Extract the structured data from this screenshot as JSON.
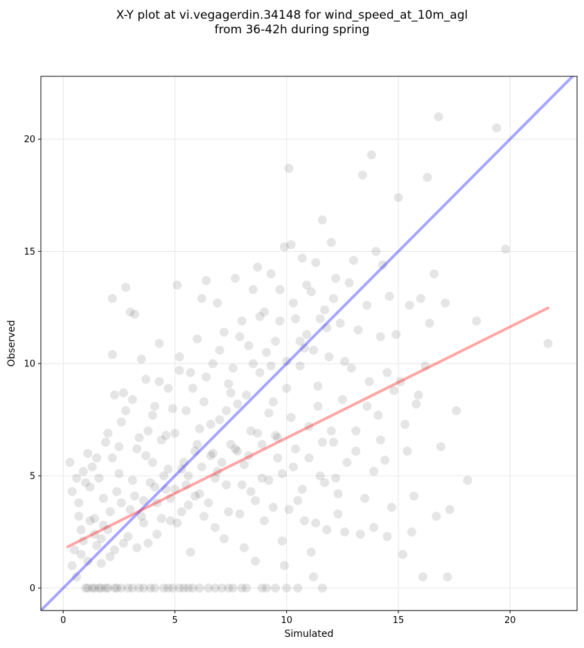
{
  "chart_data": {
    "type": "scatter",
    "title_line1": "X-Y plot at vi.vegagerdin.34148 for wind_speed_at_10m_agl",
    "title_line2": "from 36-42h during spring",
    "xlabel": "Simulated",
    "ylabel": "Observed",
    "xlim": [
      -1,
      23
    ],
    "ylim": [
      -1,
      22.8
    ],
    "xticks": [
      0,
      5,
      10,
      15,
      20
    ],
    "yticks": [
      0,
      5,
      10,
      15,
      20
    ],
    "grid": true,
    "point_color": "#000000",
    "identity_line": {
      "color": "#0000ff",
      "x": [
        -1,
        23
      ],
      "y": [
        -1,
        23
      ]
    },
    "regression_line": {
      "color": "#ff0000",
      "x": [
        0.2,
        21.7
      ],
      "y": [
        1.84,
        12.48
      ]
    },
    "points": [
      [
        0.3,
        5.6
      ],
      [
        0.4,
        4.3
      ],
      [
        0.5,
        1.7
      ],
      [
        0.6,
        4.9
      ],
      [
        0.7,
        3.8
      ],
      [
        0.8,
        2.6
      ],
      [
        0.9,
        5.2
      ],
      [
        1.0,
        0.0
      ],
      [
        1.1,
        6.0
      ],
      [
        1.2,
        4.5
      ],
      [
        1.3,
        0.0
      ],
      [
        1.4,
        3.1
      ],
      [
        1.5,
        5.8
      ],
      [
        1.6,
        0.0
      ],
      [
        1.7,
        2.2
      ],
      [
        1.8,
        4.0
      ],
      [
        1.9,
        0.0
      ],
      [
        2.0,
        6.9
      ],
      [
        2.1,
        3.4
      ],
      [
        2.2,
        12.9
      ],
      [
        2.2,
        10.4
      ],
      [
        2.3,
        8.6
      ],
      [
        2.4,
        0.0
      ],
      [
        2.5,
        5.1
      ],
      [
        2.6,
        7.4
      ],
      [
        2.7,
        8.7
      ],
      [
        2.8,
        13.4
      ],
      [
        2.9,
        0.0
      ],
      [
        3.0,
        12.3
      ],
      [
        3.1,
        4.8
      ],
      [
        3.2,
        12.2
      ],
      [
        3.3,
        6.2
      ],
      [
        3.4,
        0.0
      ],
      [
        3.5,
        10.2
      ],
      [
        3.6,
        3.9
      ],
      [
        3.7,
        9.3
      ],
      [
        3.8,
        7.0
      ],
      [
        3.9,
        0.0
      ],
      [
        4.0,
        5.6
      ],
      [
        4.1,
        8.1
      ],
      [
        4.2,
        2.4
      ],
      [
        4.3,
        10.9
      ],
      [
        4.4,
        6.6
      ],
      [
        4.5,
        0.0
      ],
      [
        4.6,
        4.4
      ],
      [
        4.7,
        8.9
      ],
      [
        4.8,
        3.0
      ],
      [
        4.9,
        0.0
      ],
      [
        5.0,
        6.9
      ],
      [
        5.1,
        13.5
      ],
      [
        5.2,
        10.3
      ],
      [
        5.3,
        5.3
      ],
      [
        5.4,
        0.0
      ],
      [
        5.5,
        7.9
      ],
      [
        5.6,
        3.7
      ],
      [
        5.7,
        9.6
      ],
      [
        5.8,
        0.0
      ],
      [
        5.9,
        6.1
      ],
      [
        6.0,
        11.1
      ],
      [
        6.1,
        4.2
      ],
      [
        6.2,
        12.9
      ],
      [
        6.3,
        8.3
      ],
      [
        6.4,
        13.7
      ],
      [
        6.5,
        0.0
      ],
      [
        6.6,
        5.9
      ],
      [
        6.7,
        10.0
      ],
      [
        6.8,
        2.7
      ],
      [
        6.9,
        12.7
      ],
      [
        7.0,
        7.5
      ],
      [
        7.1,
        0.0
      ],
      [
        7.2,
        11.4
      ],
      [
        7.3,
        4.6
      ],
      [
        7.4,
        9.1
      ],
      [
        7.5,
        6.4
      ],
      [
        7.6,
        0.0
      ],
      [
        7.7,
        13.8
      ],
      [
        7.8,
        8.2
      ],
      [
        7.9,
        3.3
      ],
      [
        8.0,
        11.9
      ],
      [
        8.1,
        5.5
      ],
      [
        8.2,
        0.0
      ],
      [
        8.3,
        10.8
      ],
      [
        8.4,
        7.0
      ],
      [
        8.5,
        13.3
      ],
      [
        8.6,
        1.2
      ],
      [
        8.7,
        14.3
      ],
      [
        8.8,
        9.6
      ],
      [
        8.9,
        4.9
      ],
      [
        9.0,
        12.3
      ],
      [
        9.1,
        0.0
      ],
      [
        9.2,
        7.8
      ],
      [
        9.3,
        14.0
      ],
      [
        9.4,
        3.6
      ],
      [
        9.5,
        11.0
      ],
      [
        9.6,
        6.7
      ],
      [
        9.7,
        13.3
      ],
      [
        9.8,
        2.1
      ],
      [
        9.9,
        15.2
      ],
      [
        10.0,
        8.9
      ],
      [
        10.1,
        18.7
      ],
      [
        10.2,
        15.3
      ],
      [
        10.3,
        5.4
      ],
      [
        10.4,
        12.0
      ],
      [
        10.5,
        0.0
      ],
      [
        10.6,
        9.9
      ],
      [
        10.7,
        14.7
      ],
      [
        10.8,
        3.0
      ],
      [
        10.9,
        11.3
      ],
      [
        11.0,
        7.2
      ],
      [
        11.1,
        13.2
      ],
      [
        11.2,
        0.5
      ],
      [
        11.3,
        14.5
      ],
      [
        11.4,
        9.0
      ],
      [
        11.5,
        5.0
      ],
      [
        11.6,
        16.4
      ],
      [
        11.7,
        12.4
      ],
      [
        11.8,
        2.6
      ],
      [
        11.9,
        10.3
      ],
      [
        12.0,
        15.4
      ],
      [
        12.1,
        6.5
      ],
      [
        12.2,
        13.8
      ],
      [
        12.3,
        4.2
      ],
      [
        12.4,
        11.8
      ],
      [
        12.5,
        8.4
      ],
      [
        12.6,
        2.5
      ],
      [
        12.8,
        13.6
      ],
      [
        12.9,
        9.8
      ],
      [
        13.0,
        14.6
      ],
      [
        13.1,
        6.1
      ],
      [
        13.2,
        11.5
      ],
      [
        13.4,
        18.4
      ],
      [
        13.5,
        4.0
      ],
      [
        13.6,
        12.6
      ],
      [
        13.7,
        9.2
      ],
      [
        13.8,
        19.3
      ],
      [
        13.9,
        2.7
      ],
      [
        14.0,
        15.0
      ],
      [
        14.1,
        7.7
      ],
      [
        14.2,
        11.2
      ],
      [
        14.3,
        14.4
      ],
      [
        14.4,
        5.7
      ],
      [
        14.5,
        9.6
      ],
      [
        14.6,
        13.0
      ],
      [
        14.7,
        3.6
      ],
      [
        14.9,
        11.3
      ],
      [
        15.0,
        17.4
      ],
      [
        15.1,
        9.2
      ],
      [
        15.2,
        1.5
      ],
      [
        15.3,
        7.3
      ],
      [
        15.5,
        12.6
      ],
      [
        15.6,
        2.5
      ],
      [
        15.7,
        4.1
      ],
      [
        15.8,
        8.2
      ],
      [
        16.0,
        12.9
      ],
      [
        16.1,
        0.5
      ],
      [
        16.2,
        9.9
      ],
      [
        16.3,
        18.3
      ],
      [
        16.4,
        11.8
      ],
      [
        16.6,
        14.0
      ],
      [
        16.7,
        3.2
      ],
      [
        16.8,
        21.0
      ],
      [
        16.9,
        6.3
      ],
      [
        17.1,
        12.7
      ],
      [
        17.2,
        0.5
      ],
      [
        17.3,
        3.5
      ],
      [
        17.6,
        7.9
      ],
      [
        18.1,
        4.8
      ],
      [
        18.5,
        11.9
      ],
      [
        19.4,
        20.5
      ],
      [
        19.8,
        15.1
      ],
      [
        21.7,
        10.9
      ],
      [
        1.2,
        3.0
      ],
      [
        1.5,
        1.9
      ],
      [
        1.8,
        2.8
      ],
      [
        2.1,
        1.4
      ],
      [
        2.4,
        4.3
      ],
      [
        2.7,
        2.0
      ],
      [
        3.0,
        3.5
      ],
      [
        3.3,
        1.8
      ],
      [
        3.6,
        2.9
      ],
      [
        3.9,
        4.7
      ],
      [
        4.2,
        3.8
      ],
      [
        4.5,
        5.0
      ],
      [
        4.8,
        4.0
      ],
      [
        5.1,
        2.9
      ],
      [
        5.4,
        5.6
      ],
      [
        5.7,
        1.6
      ],
      [
        6.0,
        6.4
      ],
      [
        6.3,
        3.2
      ],
      [
        6.6,
        7.3
      ],
      [
        6.9,
        5.2
      ],
      [
        7.2,
        2.2
      ],
      [
        7.5,
        8.7
      ],
      [
        7.8,
        6.1
      ],
      [
        8.1,
        1.8
      ],
      [
        8.4,
        4.3
      ],
      [
        8.7,
        6.9
      ],
      [
        9.0,
        3.0
      ],
      [
        9.3,
        9.9
      ],
      [
        9.6,
        5.8
      ],
      [
        9.9,
        1.0
      ],
      [
        10.2,
        7.6
      ],
      [
        10.5,
        3.9
      ],
      [
        10.8,
        10.7
      ],
      [
        11.1,
        1.6
      ],
      [
        11.4,
        8.1
      ],
      [
        11.7,
        4.7
      ],
      [
        12.0,
        7.0
      ],
      [
        12.3,
        3.3
      ],
      [
        12.6,
        10.1
      ],
      [
        1.1,
        0.0
      ],
      [
        1.4,
        0.0
      ],
      [
        1.7,
        0.0
      ],
      [
        2.0,
        0.0
      ],
      [
        2.3,
        0.0
      ],
      [
        2.6,
        0.0
      ],
      [
        3.1,
        0.0
      ],
      [
        3.6,
        0.0
      ],
      [
        4.1,
        0.0
      ],
      [
        4.7,
        0.0
      ],
      [
        5.2,
        0.0
      ],
      [
        5.6,
        0.0
      ],
      [
        6.1,
        0.0
      ],
      [
        6.8,
        0.0
      ],
      [
        7.4,
        0.0
      ],
      [
        8.0,
        0.0
      ],
      [
        8.9,
        0.0
      ],
      [
        9.5,
        0.0
      ],
      [
        10.0,
        0.0
      ],
      [
        11.6,
        0.0
      ],
      [
        0.7,
        3.2
      ],
      [
        0.9,
        2.1
      ],
      [
        1.0,
        4.7
      ],
      [
        1.3,
        5.4
      ],
      [
        1.6,
        4.9
      ],
      [
        1.9,
        6.5
      ],
      [
        2.2,
        5.8
      ],
      [
        2.5,
        6.3
      ],
      [
        2.8,
        7.9
      ],
      [
        3.1,
        8.4
      ],
      [
        3.4,
        6.7
      ],
      [
        3.7,
        5.9
      ],
      [
        4.0,
        7.7
      ],
      [
        4.3,
        9.2
      ],
      [
        4.6,
        6.8
      ],
      [
        4.9,
        8.0
      ],
      [
        5.2,
        9.7
      ],
      [
        5.5,
        4.6
      ],
      [
        5.8,
        8.9
      ],
      [
        6.1,
        7.1
      ],
      [
        6.4,
        9.4
      ],
      [
        6.7,
        6.0
      ],
      [
        7.0,
        10.6
      ],
      [
        7.3,
        7.9
      ],
      [
        7.6,
        9.8
      ],
      [
        7.9,
        11.2
      ],
      [
        8.2,
        8.6
      ],
      [
        8.5,
        10.0
      ],
      [
        8.8,
        12.1
      ],
      [
        9.1,
        10.5
      ],
      [
        9.4,
        8.3
      ],
      [
        9.7,
        11.9
      ],
      [
        10.0,
        10.1
      ],
      [
        10.3,
        12.7
      ],
      [
        10.6,
        11.0
      ],
      [
        10.9,
        13.5
      ],
      [
        11.2,
        10.6
      ],
      [
        11.5,
        12.0
      ],
      [
        11.8,
        11.6
      ],
      [
        12.1,
        12.9
      ],
      [
        0.4,
        1.0
      ],
      [
        0.6,
        0.5
      ],
      [
        0.8,
        1.5
      ],
      [
        1.1,
        1.2
      ],
      [
        1.4,
        2.4
      ],
      [
        1.7,
        1.1
      ],
      [
        2.0,
        2.6
      ],
      [
        2.3,
        1.7
      ],
      [
        2.6,
        3.8
      ],
      [
        2.9,
        2.3
      ],
      [
        3.2,
        4.1
      ],
      [
        3.5,
        3.2
      ],
      [
        3.8,
        2.0
      ],
      [
        4.1,
        4.5
      ],
      [
        4.4,
        3.1
      ],
      [
        4.7,
        5.3
      ],
      [
        5.0,
        4.4
      ],
      [
        5.3,
        3.4
      ],
      [
        5.6,
        5.0
      ],
      [
        5.9,
        4.1
      ],
      [
        6.2,
        5.4
      ],
      [
        6.5,
        3.8
      ],
      [
        6.8,
        4.9
      ],
      [
        7.1,
        5.6
      ],
      [
        7.4,
        3.4
      ],
      [
        7.7,
        6.2
      ],
      [
        8.0,
        4.6
      ],
      [
        8.3,
        5.9
      ],
      [
        8.6,
        3.9
      ],
      [
        8.9,
        6.4
      ],
      [
        9.2,
        4.8
      ],
      [
        9.5,
        6.8
      ],
      [
        9.8,
        5.1
      ],
      [
        10.1,
        3.5
      ],
      [
        10.4,
        6.2
      ],
      [
        10.7,
        4.4
      ],
      [
        11.0,
        5.8
      ],
      [
        11.3,
        2.9
      ],
      [
        11.6,
        6.5
      ],
      [
        12.2,
        4.9
      ],
      [
        12.7,
        5.6
      ],
      [
        13.1,
        7.0
      ],
      [
        13.3,
        2.4
      ],
      [
        13.6,
        8.1
      ],
      [
        13.9,
        5.2
      ],
      [
        14.2,
        6.6
      ],
      [
        14.5,
        2.3
      ],
      [
        14.8,
        8.8
      ],
      [
        15.4,
        6.1
      ],
      [
        15.9,
        8.6
      ]
    ]
  }
}
